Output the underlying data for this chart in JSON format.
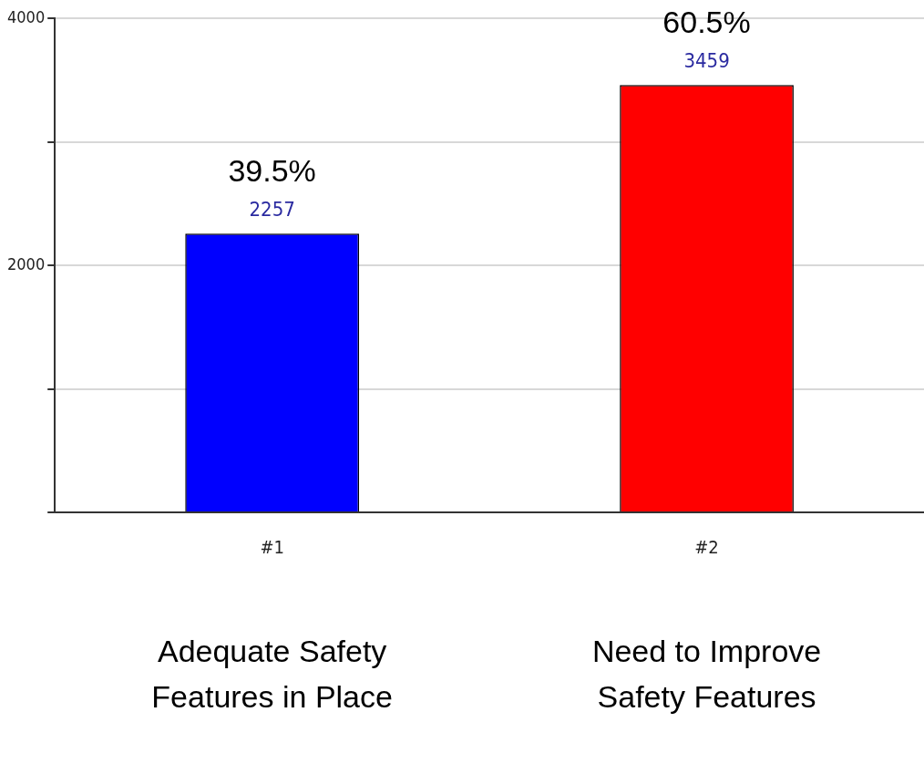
{
  "chart_data": {
    "type": "bar",
    "categories": [
      "#1",
      "#2"
    ],
    "values": [
      2257,
      3459
    ],
    "colors": [
      "#0000ff",
      "#ff0000"
    ],
    "ylim": [
      0,
      4000
    ],
    "yticks": [
      {
        "value": 0,
        "label": null
      },
      {
        "value": 1000,
        "label": null
      },
      2000,
      {
        "value": 3000,
        "label": null
      },
      4000
    ],
    "grid": "y",
    "data_labels": true,
    "annotations": [
      {
        "text": "39.5%",
        "x": "#1",
        "y": 2257
      },
      {
        "text": "60.5%",
        "x": "#2",
        "y": 3459
      },
      "Adequate Safety Features in Place",
      "Need to Improve Safety Features"
    ]
  }
}
